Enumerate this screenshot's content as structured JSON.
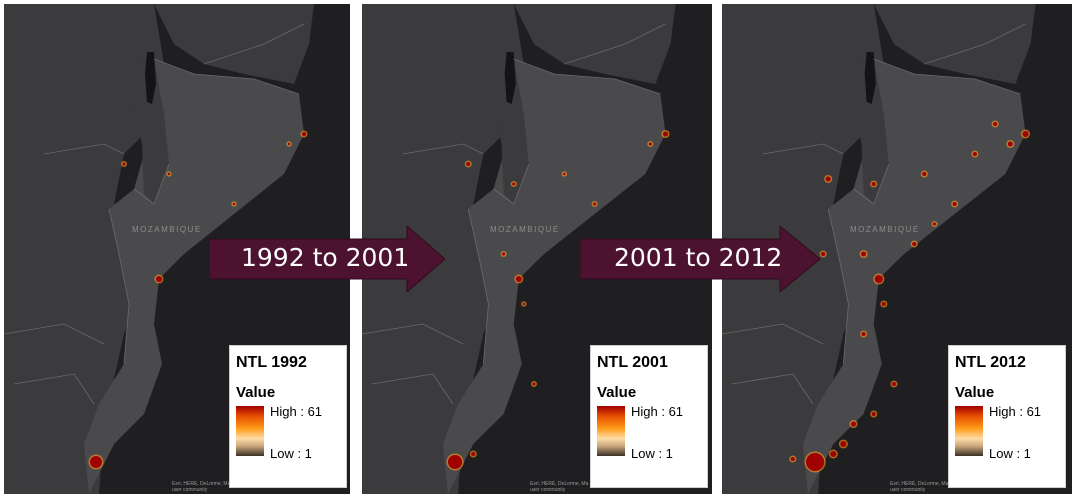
{
  "panels": [
    {
      "country_label": "MOZAMBIQUE",
      "legend": {
        "title": "NTL 1992",
        "value_label": "Value",
        "high": "High : 61",
        "low": "Low : 1"
      },
      "attribution": [
        "Esri, HERE, DeLorme, Ma",
        "user community"
      ]
    },
    {
      "country_label": "MOZAMBIQUE",
      "legend": {
        "title": "NTL 2001",
        "value_label": "Value",
        "high": "High : 61",
        "low": "Low : 1"
      },
      "attribution": [
        "Esri, HERE, DeLorme, Ma",
        "user community"
      ]
    },
    {
      "country_label": "MOZAMBIQUE",
      "legend": {
        "title": "NTL 2012",
        "value_label": "Value",
        "high": "High : 61",
        "low": "Low : 1"
      },
      "attribution": [
        "Esri, HERE, DeLorme, Ma",
        "user community"
      ]
    }
  ],
  "arrows": [
    {
      "label": "1992 to 2001"
    },
    {
      "label": "2001 to 2012"
    }
  ],
  "colors": {
    "ocean": "#1f1f22",
    "land": "#3b3b3e",
    "mozambique": "#4a4a4d",
    "lake": "#141416",
    "border": "#6a6a6a",
    "arrow": "#4d1230",
    "ramp_high": "#a10000",
    "ramp_mid": "#ff9c1a",
    "ramp_low": "#3a2f25"
  }
}
